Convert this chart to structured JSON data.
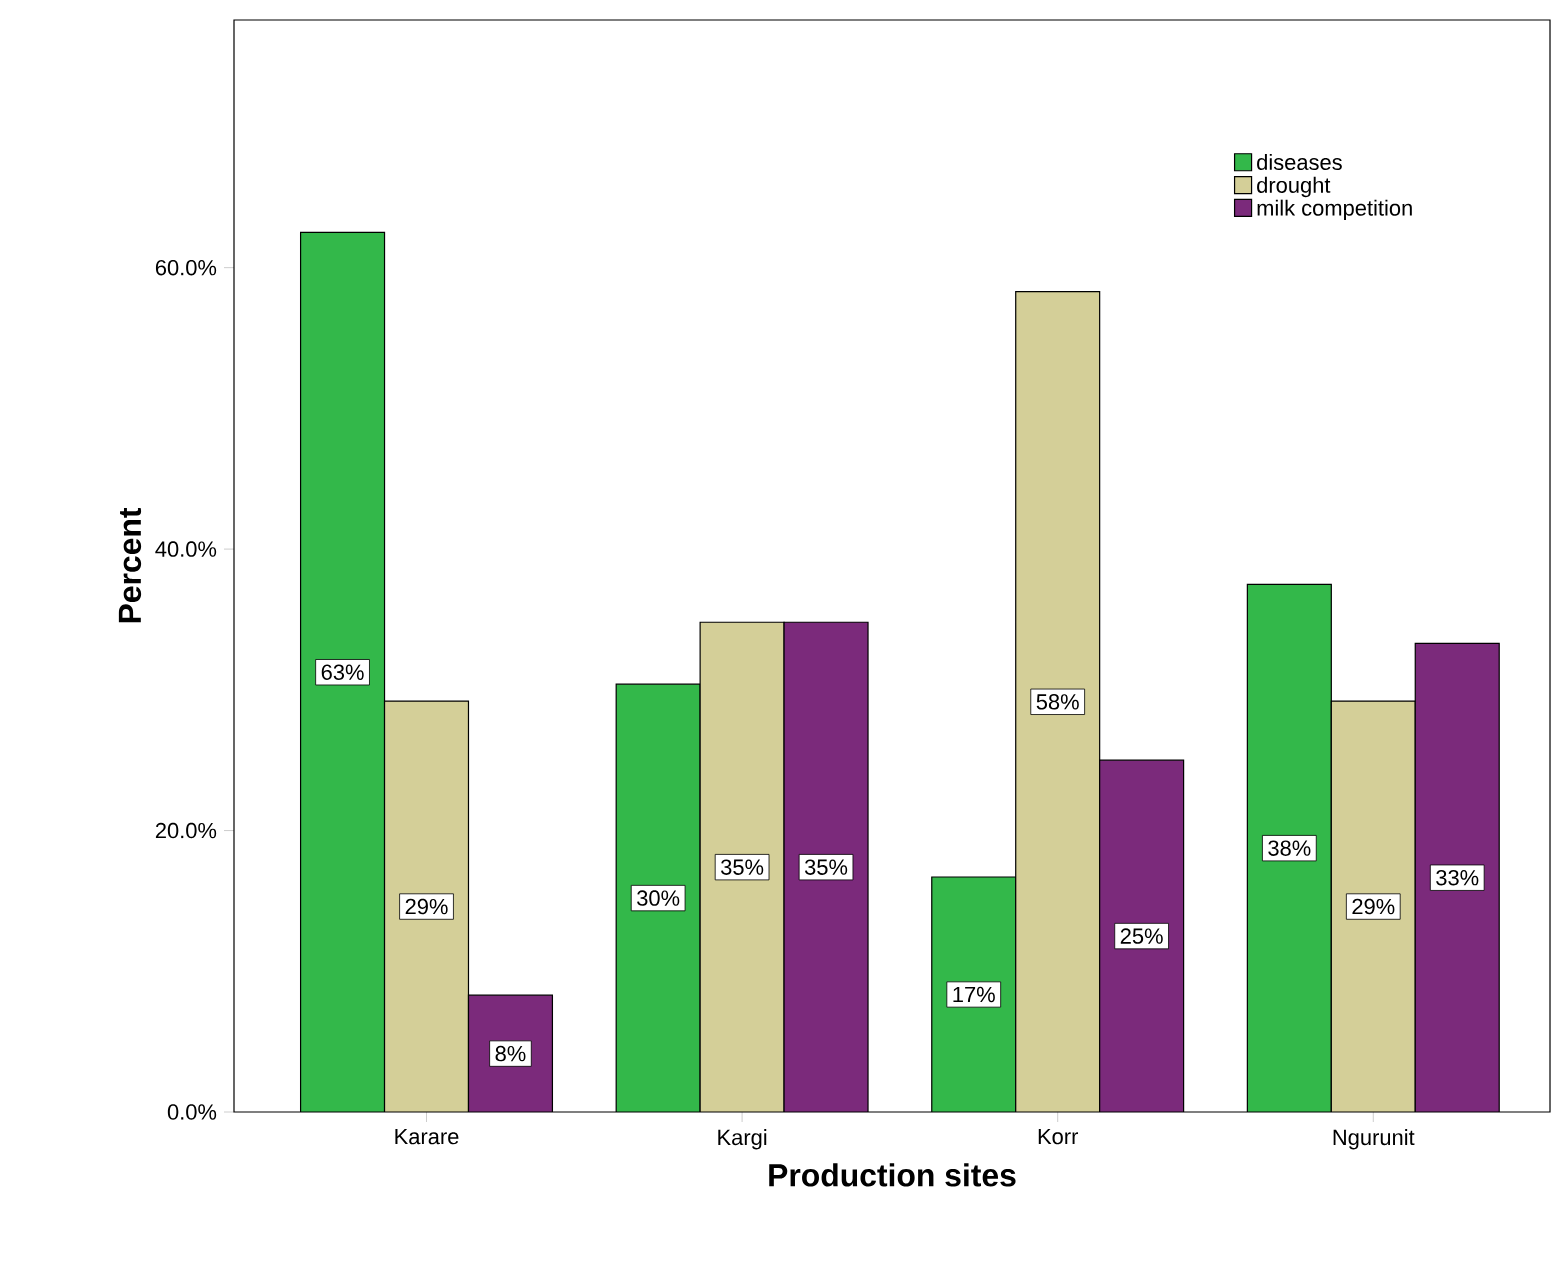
{
  "chart_data": {
    "type": "bar",
    "xlabel": "Production sites",
    "ylabel": "Percent",
    "categories": [
      "Karare",
      "Kargi",
      "Korr",
      "Ngurunit"
    ],
    "series": [
      {
        "name": "diseases",
        "color": "#33b84a",
        "values": [
          62.5,
          30.4,
          16.7,
          37.5
        ],
        "value_labels": [
          "63%",
          "30%",
          "17%",
          "38%"
        ]
      },
      {
        "name": "drought",
        "color": "#d4cf98",
        "values": [
          29.2,
          34.8,
          58.3,
          29.2
        ],
        "value_labels": [
          "29%",
          "35%",
          "58%",
          "29%"
        ]
      },
      {
        "name": "milk competition",
        "color": "#7b2a7b",
        "values": [
          8.3,
          34.8,
          25.0,
          33.3
        ],
        "value_labels": [
          "8%",
          "35%",
          "25%",
          "33%"
        ]
      }
    ],
    "ylim": [
      0,
      77.6
    ],
    "yticks": [
      {
        "value": 0,
        "label": "0.0%"
      },
      {
        "value": 20,
        "label": "20.0%"
      },
      {
        "value": 40,
        "label": "40.0%"
      },
      {
        "value": 60,
        "label": "60.0%"
      }
    ],
    "legend": "top right",
    "grid": false
  }
}
